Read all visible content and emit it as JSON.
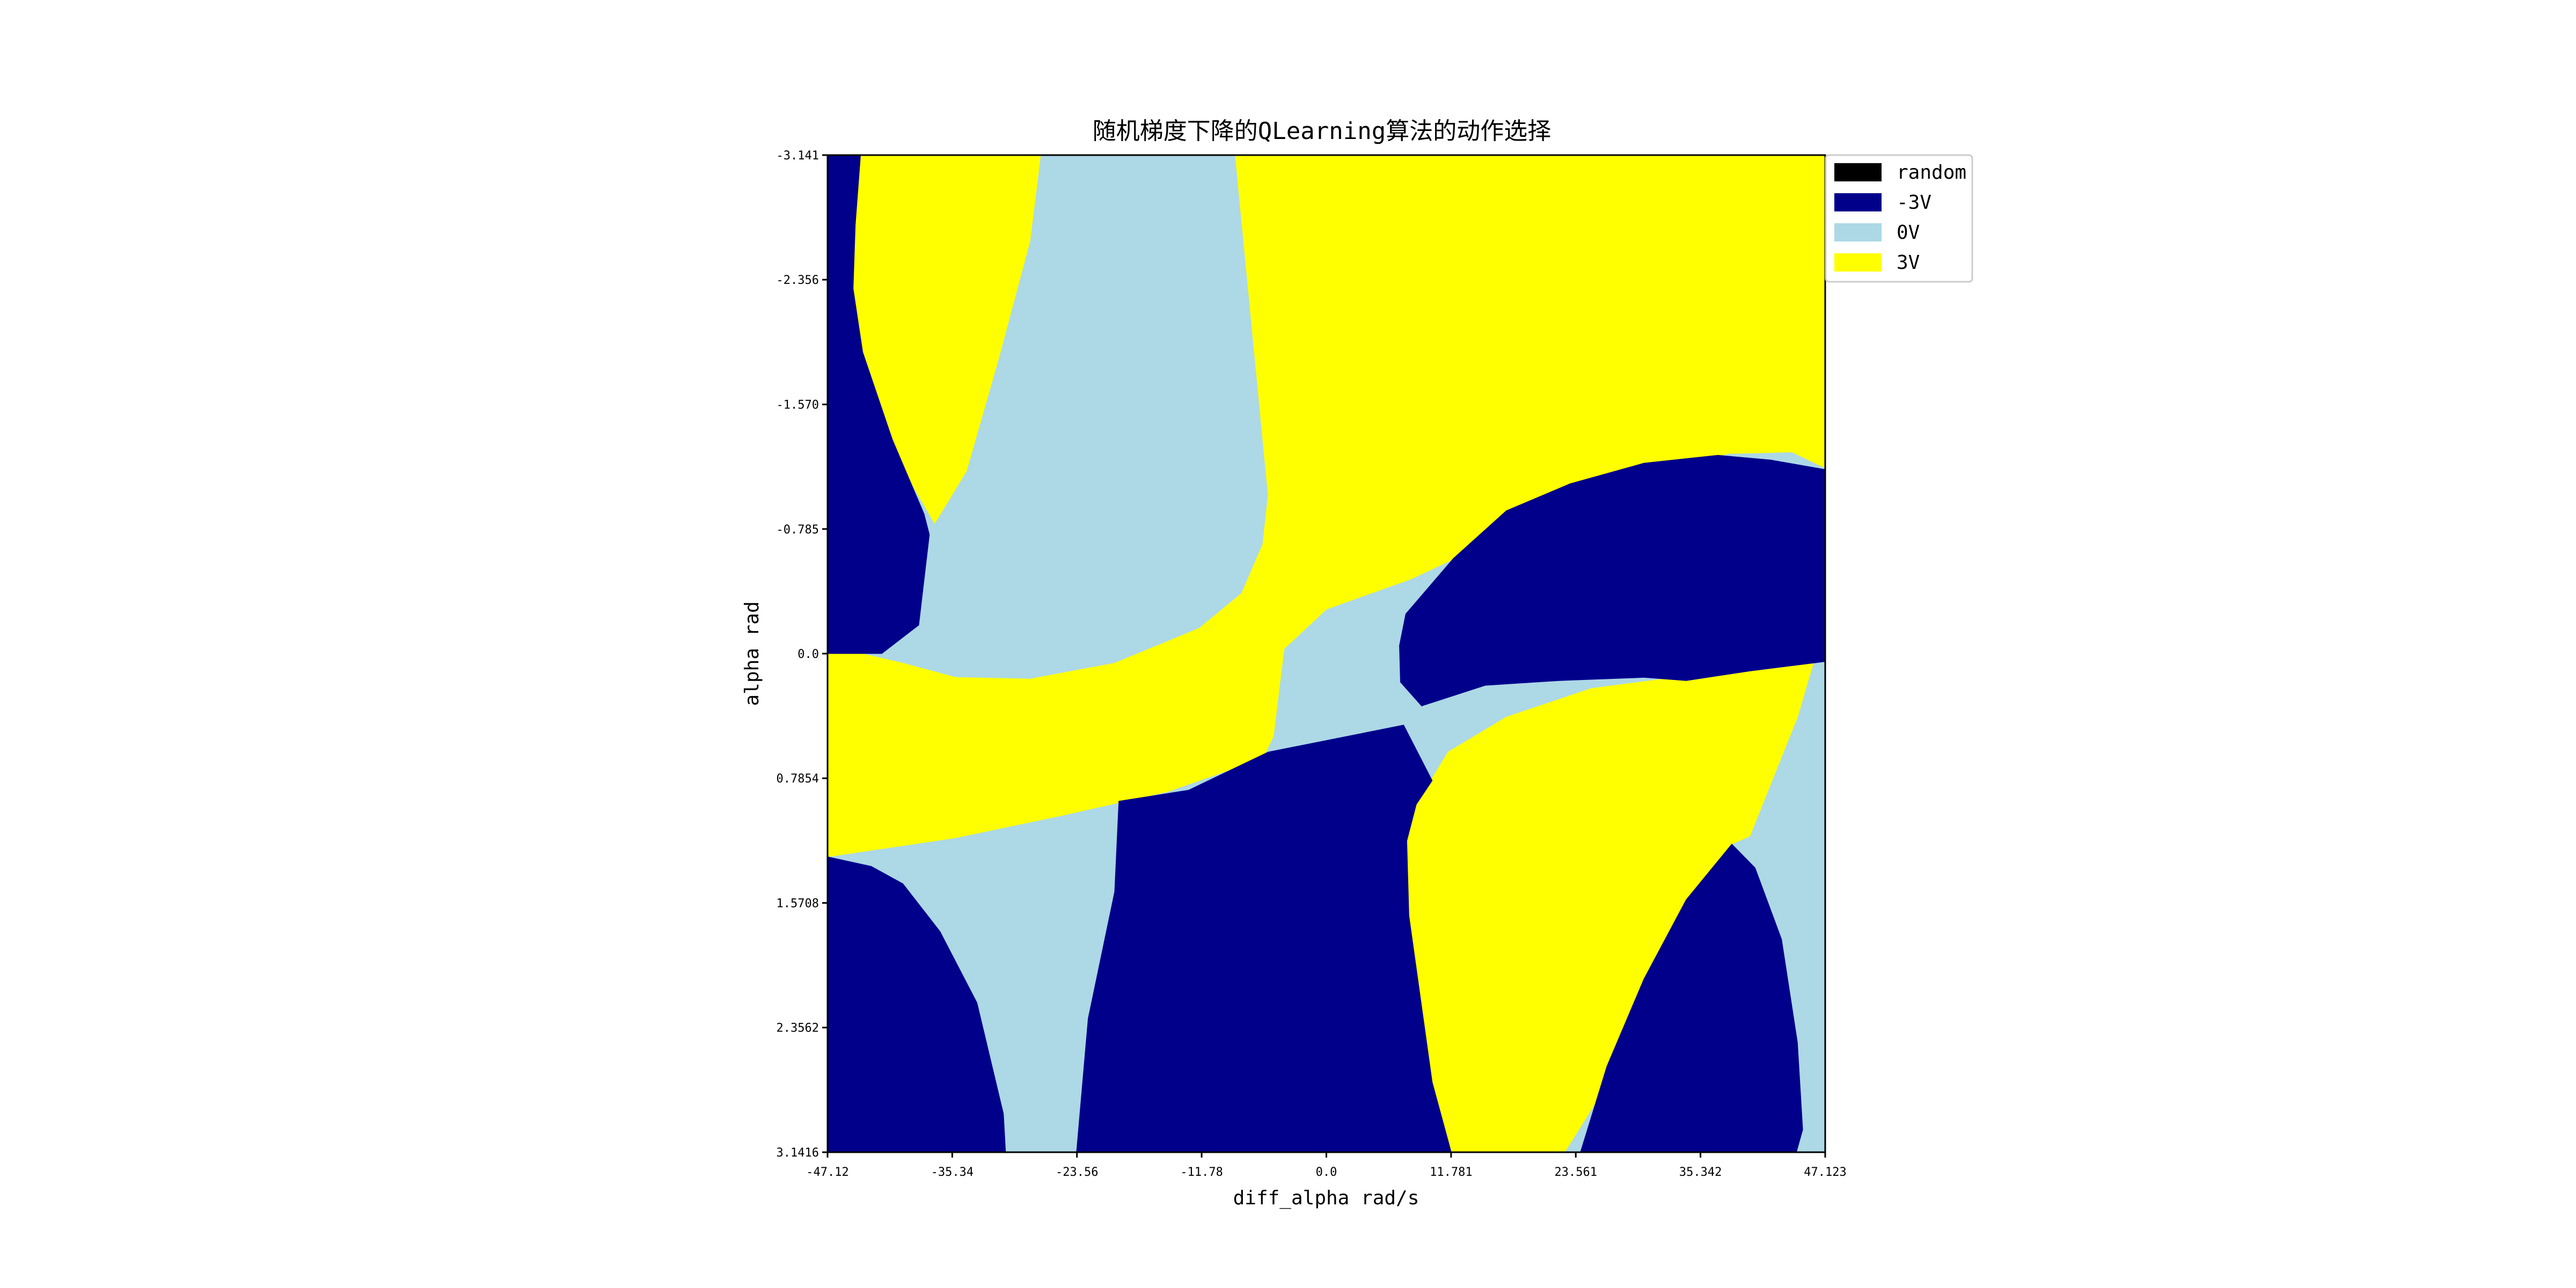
{
  "chart_data": {
    "type": "heatmap",
    "title": "随机梯度下降的QLearning算法的动作选择",
    "xlabel": "diff_alpha rad/s",
    "ylabel": "alpha rad",
    "xlim": [
      -47.12,
      47.123
    ],
    "ylim": [
      -3.141,
      3.1416
    ],
    "x_ticks": [
      {
        "value": -47.12,
        "label": "-47.12"
      },
      {
        "value": -35.34,
        "label": "-35.34"
      },
      {
        "value": -23.56,
        "label": "-23.56"
      },
      {
        "value": -11.78,
        "label": "-11.78"
      },
      {
        "value": 0.0,
        "label": "0.0"
      },
      {
        "value": 11.781,
        "label": "11.781"
      },
      {
        "value": 23.561,
        "label": "23.561"
      },
      {
        "value": 35.342,
        "label": "35.342"
      },
      {
        "value": 47.123,
        "label": "47.123"
      }
    ],
    "y_ticks": [
      {
        "value": -3.141,
        "label": "-3.141"
      },
      {
        "value": -2.356,
        "label": "-2.356"
      },
      {
        "value": -1.57,
        "label": "-1.570"
      },
      {
        "value": -0.785,
        "label": "-0.785"
      },
      {
        "value": 0.0,
        "label": "0.0"
      },
      {
        "value": 0.7854,
        "label": "0.7854"
      },
      {
        "value": 1.5708,
        "label": "1.5708"
      },
      {
        "value": 2.3562,
        "label": "2.3562"
      },
      {
        "value": 3.1416,
        "label": "3.1416"
      }
    ],
    "y_inverted": true,
    "legend_position": "upper-right, outside plot",
    "legend": [
      {
        "label": "random",
        "color": "#000000"
      },
      {
        "label": "-3V",
        "color": "#00008B"
      },
      {
        "label": "0V",
        "color": "#ADD8E6"
      },
      {
        "label": "3V",
        "color": "#FFFF00"
      }
    ],
    "regions": [
      {
        "action": "0V",
        "color": "#ADD8E6",
        "points": [
          [
            -47.12,
            -3.141
          ],
          [
            47.123,
            -3.141
          ],
          [
            47.123,
            3.1416
          ],
          [
            -47.12,
            3.1416
          ]
        ]
      },
      {
        "action": "3V",
        "color": "#FFFF00",
        "points": [
          [
            -8.6,
            -3.141
          ],
          [
            47.123,
            -3.141
          ],
          [
            47.123,
            -1.17
          ],
          [
            44.0,
            -1.27
          ],
          [
            38.0,
            -1.26
          ],
          [
            31.0,
            -1.15
          ],
          [
            23.0,
            -0.93
          ],
          [
            16.0,
            -0.72
          ],
          [
            8.0,
            -0.47
          ],
          [
            0.0,
            -0.28
          ],
          [
            -4.0,
            -0.03
          ],
          [
            -5.0,
            0.52
          ],
          [
            -6.0,
            0.66
          ],
          [
            -15.0,
            0.87
          ],
          [
            -25.0,
            1.02
          ],
          [
            -35.0,
            1.16
          ],
          [
            -47.12,
            1.28
          ],
          [
            -47.12,
            -0.05
          ],
          [
            -40.0,
            0.06
          ],
          [
            -35.0,
            0.15
          ],
          [
            -28.0,
            0.16
          ],
          [
            -20.0,
            0.06
          ],
          [
            -12.0,
            -0.16
          ],
          [
            -8.0,
            -0.38
          ],
          [
            -6.0,
            -0.69
          ],
          [
            -5.5,
            -1.0
          ]
        ]
      },
      {
        "action": "3V",
        "color": "#FFFF00",
        "points": [
          [
            -45.5,
            -3.141
          ],
          [
            -27.0,
            -3.141
          ],
          [
            -28.0,
            -2.6
          ],
          [
            -31.0,
            -1.85
          ],
          [
            -34.0,
            -1.15
          ],
          [
            -37.0,
            -0.82
          ],
          [
            -39.0,
            -1.05
          ],
          [
            -42.0,
            -1.45
          ],
          [
            -45.0,
            -1.9
          ],
          [
            -45.8,
            -2.3
          ],
          [
            -45.6,
            -2.7
          ]
        ]
      },
      {
        "action": "3V",
        "color": "#FFFF00",
        "points": [
          [
            11.5,
            0.62
          ],
          [
            17.0,
            0.4
          ],
          [
            25.0,
            0.22
          ],
          [
            33.0,
            0.15
          ],
          [
            39.0,
            0.11
          ],
          [
            46.0,
            0.06
          ],
          [
            44.5,
            0.4
          ],
          [
            40.0,
            1.15
          ],
          [
            38.3,
            1.2
          ],
          [
            33.0,
            1.75
          ],
          [
            29.0,
            2.45
          ],
          [
            22.5,
            3.1416
          ],
          [
            11.8,
            3.1416
          ],
          [
            10.0,
            2.7
          ],
          [
            7.8,
            1.65
          ],
          [
            7.6,
            1.18
          ],
          [
            8.5,
            0.95
          ]
        ]
      },
      {
        "action": "-3V",
        "color": "#00008B",
        "points": [
          [
            -47.12,
            -3.141
          ],
          [
            -44.0,
            -3.141
          ],
          [
            -44.5,
            -2.7
          ],
          [
            -44.7,
            -2.3
          ],
          [
            -43.8,
            -1.9
          ],
          [
            -41.0,
            -1.35
          ],
          [
            -38.0,
            -0.88
          ],
          [
            -37.5,
            -0.75
          ],
          [
            -38.5,
            -0.18
          ],
          [
            -42.0,
            0.0
          ],
          [
            -47.12,
            0.0
          ]
        ]
      },
      {
        "action": "-3V",
        "color": "#00008B",
        "points": [
          [
            7.5,
            -0.25
          ],
          [
            12.0,
            -0.6
          ],
          [
            17.0,
            -0.9
          ],
          [
            23.0,
            -1.07
          ],
          [
            30.0,
            -1.2
          ],
          [
            37.0,
            -1.25
          ],
          [
            42.0,
            -1.22
          ],
          [
            47.123,
            -1.16
          ],
          [
            47.123,
            0.05
          ],
          [
            40.0,
            0.11
          ],
          [
            34.0,
            0.17
          ],
          [
            30.0,
            0.15
          ],
          [
            22.0,
            0.17
          ],
          [
            15.0,
            0.2
          ],
          [
            9.0,
            0.33
          ],
          [
            7.0,
            0.18
          ],
          [
            6.9,
            -0.05
          ]
        ]
      },
      {
        "action": "-3V",
        "color": "#00008B",
        "points": [
          [
            -19.6,
            0.93
          ],
          [
            -13.0,
            0.86
          ],
          [
            -5.5,
            0.62
          ],
          [
            7.3,
            0.45
          ],
          [
            10.0,
            0.8
          ],
          [
            8.5,
            0.95
          ],
          [
            7.6,
            1.18
          ],
          [
            7.8,
            1.65
          ],
          [
            10.0,
            2.7
          ],
          [
            11.8,
            3.1416
          ],
          [
            -23.6,
            3.1416
          ],
          [
            -22.5,
            2.3
          ],
          [
            -20.0,
            1.5
          ]
        ]
      },
      {
        "action": "-3V",
        "color": "#00008B",
        "points": [
          [
            -47.12,
            1.28
          ],
          [
            -43.0,
            1.34
          ],
          [
            -40.0,
            1.45
          ],
          [
            -36.5,
            1.75
          ],
          [
            -33.0,
            2.2
          ],
          [
            -30.5,
            2.9
          ],
          [
            -30.3,
            3.1416
          ],
          [
            -47.12,
            3.1416
          ]
        ]
      },
      {
        "action": "-3V",
        "color": "#00008B",
        "points": [
          [
            38.3,
            1.2
          ],
          [
            40.5,
            1.35
          ],
          [
            43.0,
            1.8
          ],
          [
            44.5,
            2.45
          ],
          [
            45.0,
            3.0
          ],
          [
            44.4,
            3.1416
          ],
          [
            24.0,
            3.1416
          ],
          [
            26.5,
            2.6
          ],
          [
            30.0,
            2.05
          ],
          [
            34.0,
            1.55
          ]
        ]
      }
    ]
  }
}
